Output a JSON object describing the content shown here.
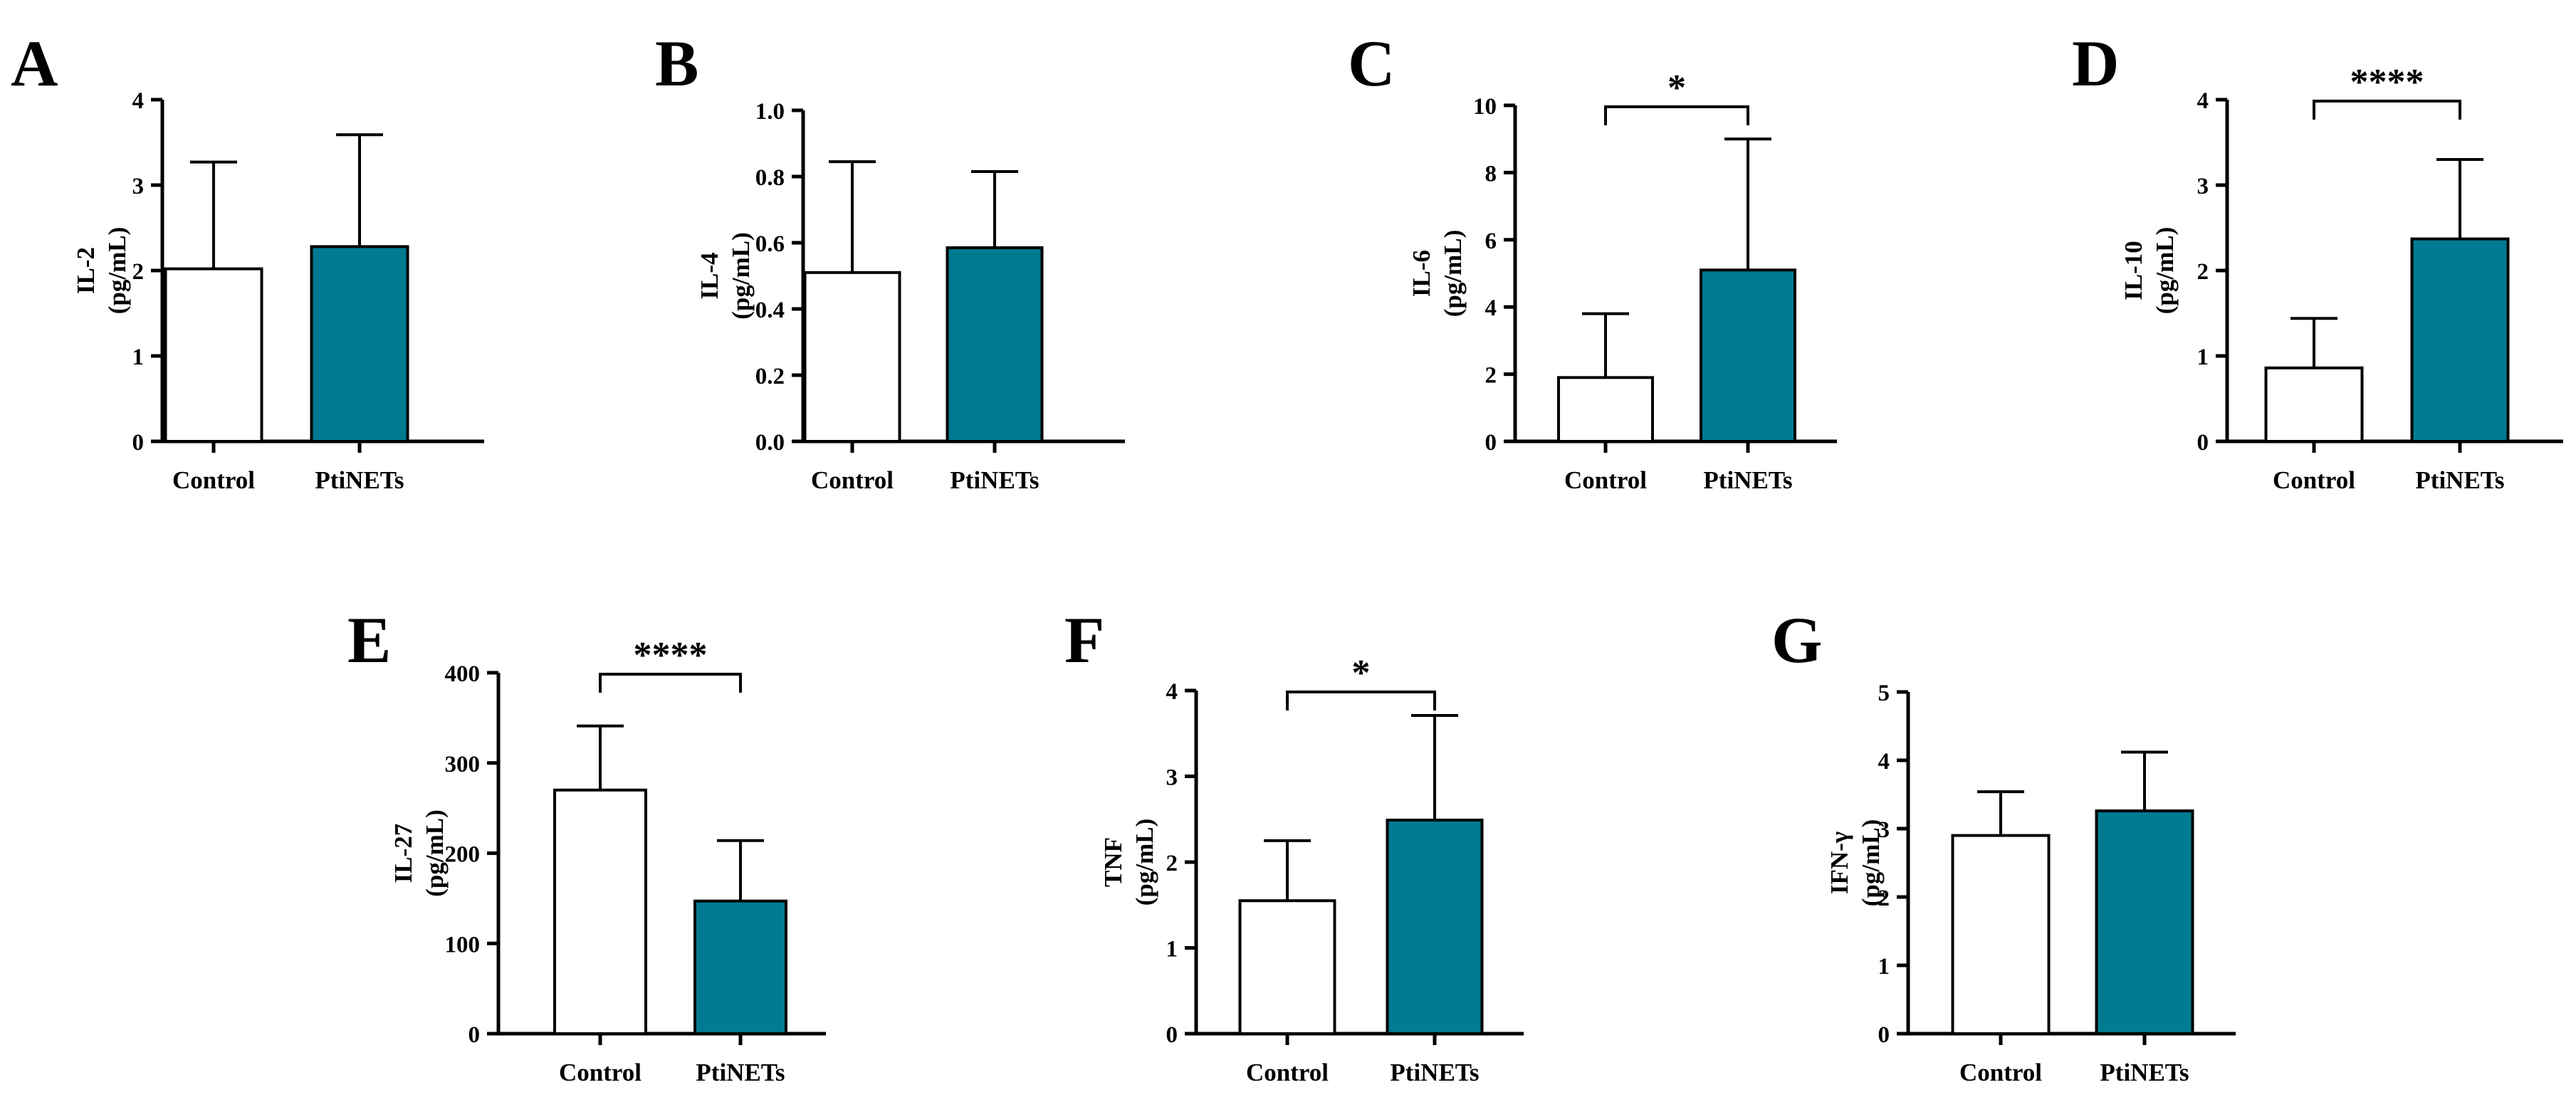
{
  "colors": {
    "control": "#ffffff",
    "ptinets": "#007b91",
    "stroke": "#000000"
  },
  "chart_data": [
    {
      "type": "bar",
      "panel": "A",
      "categories": [
        "Control",
        "PtiNETs"
      ],
      "values": [
        2.02,
        2.28
      ],
      "errors": [
        1.25,
        1.31
      ],
      "ylabel": [
        "IL-2",
        "(pg/mL)"
      ],
      "ylim": [
        0,
        4
      ],
      "yticks": [
        "0",
        "1",
        "2",
        "3",
        "4"
      ],
      "significance": ""
    },
    {
      "type": "bar",
      "panel": "B",
      "categories": [
        "Control",
        "PtiNETs"
      ],
      "values": [
        0.51,
        0.585
      ],
      "errors": [
        0.335,
        0.23
      ],
      "ylabel": [
        "IL-4",
        "(pg/mL)"
      ],
      "ylim": [
        0,
        1.0
      ],
      "yticks": [
        "0.0",
        "0.2",
        "0.4",
        "0.6",
        "0.8",
        "1.0"
      ],
      "significance": ""
    },
    {
      "type": "bar",
      "panel": "C",
      "categories": [
        "Control",
        "PtiNETs"
      ],
      "values": [
        1.9,
        5.1
      ],
      "errors": [
        1.9,
        3.9
      ],
      "ylabel": [
        "IL-6",
        "(pg/mL)"
      ],
      "ylim": [
        0,
        10
      ],
      "yticks": [
        "0",
        "2",
        "4",
        "6",
        "8",
        "10"
      ],
      "significance": "*"
    },
    {
      "type": "bar",
      "panel": "D",
      "categories": [
        "Control",
        "PtiNETs"
      ],
      "values": [
        0.86,
        2.37
      ],
      "errors": [
        0.58,
        0.93
      ],
      "ylabel": [
        "IL-10",
        "(pg/mL)"
      ],
      "ylim": [
        0,
        4
      ],
      "yticks": [
        "0",
        "1",
        "2",
        "3",
        "4"
      ],
      "significance": "****"
    },
    {
      "type": "bar",
      "panel": "E",
      "categories": [
        "Control",
        "PtiNETs"
      ],
      "values": [
        270,
        147
      ],
      "errors": [
        71,
        67
      ],
      "ylabel": [
        "IL-27",
        "(pg/mL)"
      ],
      "ylim": [
        0,
        400
      ],
      "yticks": [
        "0",
        "100",
        "200",
        "300",
        "400"
      ],
      "significance": "****"
    },
    {
      "type": "bar",
      "panel": "F",
      "categories": [
        "Control",
        "PtiNETs"
      ],
      "values": [
        1.55,
        2.49
      ],
      "errors": [
        0.7,
        1.22
      ],
      "ylabel": [
        "TNF",
        "(pg/mL)"
      ],
      "ylim": [
        0,
        4
      ],
      "yticks": [
        "0",
        "1",
        "2",
        "3",
        "4"
      ],
      "significance": "*"
    },
    {
      "type": "bar",
      "panel": "G",
      "categories": [
        "Control",
        "PtiNETs"
      ],
      "values": [
        2.9,
        3.26
      ],
      "errors": [
        0.64,
        0.86
      ],
      "ylabel": [
        "IFN-γ",
        "(pg/mL)"
      ],
      "ylim": [
        0,
        5
      ],
      "yticks": [
        "0",
        "1",
        "2",
        "3",
        "4",
        "5"
      ],
      "significance": ""
    }
  ]
}
